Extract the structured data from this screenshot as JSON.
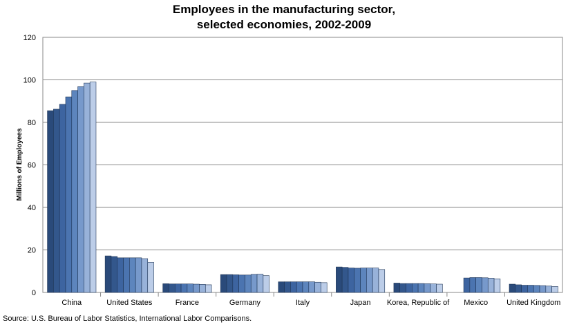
{
  "chart_data": {
    "type": "bar",
    "title_lines": [
      "Employees in the manufacturing sector,",
      "selected economies, 2002-2009"
    ],
    "xlabel": "",
    "ylabel": "Millions of Employees",
    "ylim": [
      0,
      120
    ],
    "yticks": [
      0,
      20,
      40,
      60,
      80,
      100,
      120
    ],
    "grid": true,
    "legend": "none",
    "categories": [
      "China",
      "United States",
      "France",
      "Germany",
      "Italy",
      "Japan",
      "Korea, Republic of",
      "Mexico",
      "United Kingdom"
    ],
    "series": [
      {
        "color": "#2a4a7a",
        "values": [
          85.5,
          17.2,
          4.1,
          8.4,
          5.0,
          12.0,
          4.4,
          null,
          3.9
        ]
      },
      {
        "color": "#33578c",
        "values": [
          86.2,
          16.9,
          4.0,
          8.4,
          5.0,
          11.8,
          4.2,
          null,
          3.6
        ]
      },
      {
        "color": "#3d64a0",
        "values": [
          88.5,
          16.3,
          4.0,
          8.3,
          5.0,
          11.5,
          4.2,
          6.8,
          3.4
        ]
      },
      {
        "color": "#4b74b0",
        "values": [
          92.0,
          16.3,
          4.0,
          8.2,
          5.0,
          11.4,
          4.2,
          7.0,
          3.4
        ]
      },
      {
        "color": "#5d85bd",
        "values": [
          95.0,
          16.3,
          4.0,
          8.2,
          5.0,
          11.5,
          4.2,
          7.0,
          3.3
        ]
      },
      {
        "color": "#7799cb",
        "values": [
          96.8,
          16.3,
          3.9,
          8.5,
          5.0,
          11.5,
          4.1,
          6.9,
          3.2
        ]
      },
      {
        "color": "#98b2d9",
        "values": [
          98.5,
          15.9,
          3.8,
          8.6,
          4.8,
          11.5,
          4.0,
          6.7,
          3.0
        ]
      },
      {
        "color": "#bccde8",
        "values": [
          99.0,
          14.2,
          3.6,
          7.9,
          4.6,
          10.8,
          3.9,
          6.4,
          2.8
        ]
      }
    ]
  },
  "source_text": "Source: U.S. Bureau of Labor Statistics, International Labor Comparisons."
}
